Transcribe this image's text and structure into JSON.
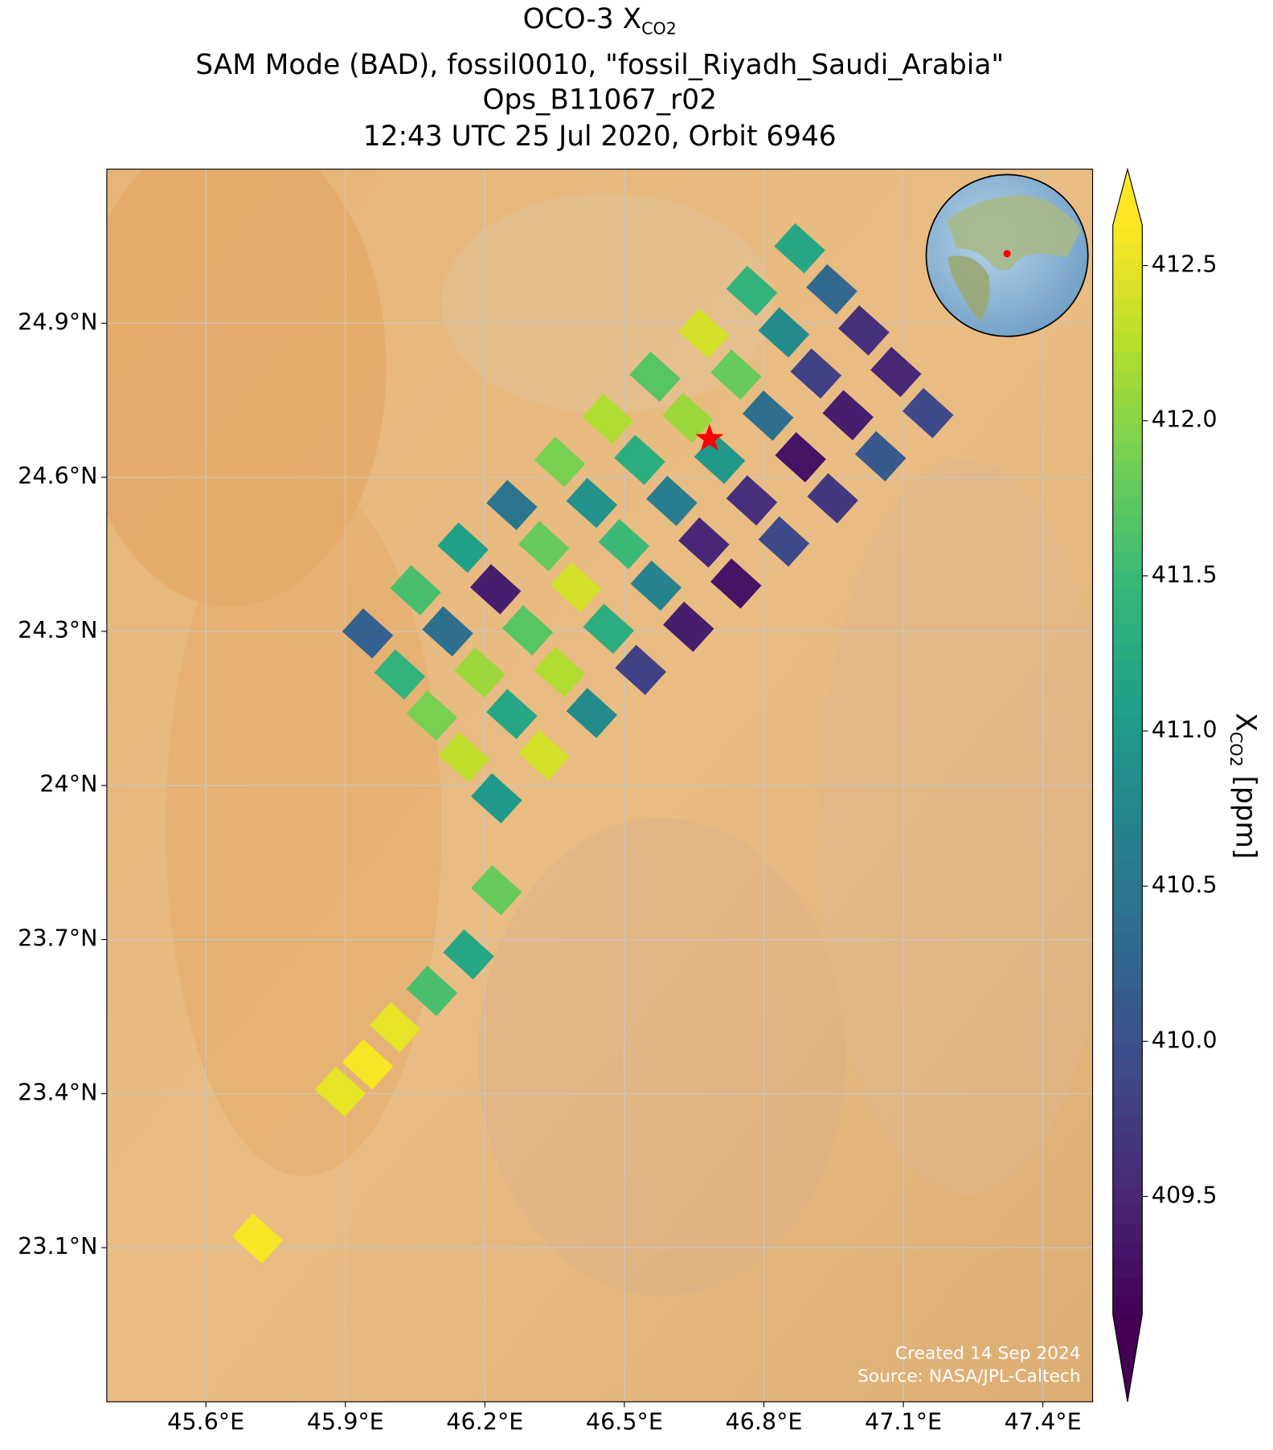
{
  "chart_data": {
    "type": "map",
    "title": [
      "OCO-3 X",
      "CO2",
      "SAM Mode (BAD), fossil0010, \"fossil_Riyadh_Saudi_Arabia\"",
      "Ops_B11067_r02",
      "12:43 UTC 25 Jul 2020, Orbit 6946"
    ],
    "colorbar_label": [
      "X",
      "CO2",
      " [ppm]"
    ],
    "annotations": [
      "Created 14 Sep 2024",
      "Source: NASA/JPL-Caltech"
    ],
    "xlim": [
      45.387,
      47.507
    ],
    "ylim": [
      22.8,
      25.2
    ],
    "xticks": [
      {
        "value": 45.6,
        "label": "45.6°E"
      },
      {
        "value": 45.9,
        "label": "45.9°E"
      },
      {
        "value": 46.2,
        "label": "46.2°E"
      },
      {
        "value": 46.5,
        "label": "46.5°E"
      },
      {
        "value": 46.8,
        "label": "46.8°E"
      },
      {
        "value": 47.1,
        "label": "47.1°E"
      },
      {
        "value": 47.4,
        "label": "47.4°E"
      }
    ],
    "yticks": [
      {
        "value": 23.1,
        "label": "23.1°N"
      },
      {
        "value": 23.4,
        "label": "23.4°N"
      },
      {
        "value": 23.7,
        "label": "23.7°N"
      },
      {
        "value": 24,
        "label": "24°N"
      },
      {
        "value": 24.3,
        "label": "24.3°N"
      },
      {
        "value": 24.6,
        "label": "24.6°N"
      },
      {
        "value": 24.9,
        "label": "24.9°N"
      }
    ],
    "grid": true,
    "clim": [
      409.12,
      412.63
    ],
    "cticks": [
      409.5,
      {
        "value": 410,
        "label": "410.0"
      },
      410.5,
      {
        "value": 411,
        "label": "411.0"
      },
      411.5,
      {
        "value": 412,
        "label": "412.0"
      },
      412.5
    ],
    "colormap": "viridis",
    "target": {
      "lon": 46.683,
      "lat": 24.675,
      "color": "#ff0000"
    },
    "x": [
      45.948,
      46.017,
      46.086,
      46.155,
      46.225,
      46.051,
      46.12,
      46.189,
      46.258,
      46.327,
      46.153,
      46.223,
      46.292,
      46.361,
      46.43,
      46.258,
      46.327,
      46.396,
      46.466,
      46.535,
      46.361,
      46.43,
      46.499,
      46.568,
      46.638,
      46.464,
      46.533,
      46.602,
      46.671,
      46.74,
      46.566,
      46.636,
      46.705,
      46.774,
      46.843,
      46.671,
      46.74,
      46.809,
      46.879,
      46.948,
      46.774,
      46.843,
      46.912,
      46.981,
      47.051,
      46.877,
      46.946,
      47.015,
      47.084,
      47.153,
      46.225,
      46.165,
      46.086,
      46.007,
      45.948,
      45.889,
      45.711
    ],
    "y": [
      24.296,
      24.216,
      24.136,
      24.055,
      23.975,
      24.38,
      24.3,
      24.22,
      24.139,
      24.059,
      24.463,
      24.382,
      24.302,
      24.221,
      24.141,
      24.546,
      24.466,
      24.386,
      24.305,
      24.225,
      24.63,
      24.55,
      24.47,
      24.389,
      24.309,
      24.714,
      24.634,
      24.554,
      24.473,
      24.393,
      24.796,
      24.716,
      24.636,
      24.555,
      24.475,
      24.88,
      24.8,
      24.72,
      24.639,
      24.559,
      24.963,
      24.882,
      24.802,
      24.721,
      24.641,
      25.046,
      24.966,
      24.886,
      24.805,
      24.725,
      23.796,
      23.671,
      23.6,
      23.529,
      23.457,
      23.404,
      23.118
    ],
    "values": [
      410.2,
      411.4,
      411.9,
      412.3,
      411.0,
      411.6,
      410.4,
      412.1,
      411.2,
      412.4,
      411.1,
      409.4,
      411.7,
      412.2,
      410.8,
      410.5,
      411.8,
      412.4,
      411.3,
      409.8,
      411.9,
      410.9,
      411.5,
      410.7,
      409.4,
      412.2,
      411.3,
      410.6,
      409.5,
      409.3,
      411.7,
      412.1,
      411.0,
      409.6,
      409.9,
      412.4,
      411.8,
      410.4,
      409.3,
      409.7,
      411.4,
      410.8,
      409.8,
      409.4,
      410.1,
      411.2,
      410.3,
      409.6,
      409.5,
      409.9,
      411.8,
      411.2,
      411.6,
      412.5,
      412.6,
      412.5,
      412.6
    ]
  }
}
